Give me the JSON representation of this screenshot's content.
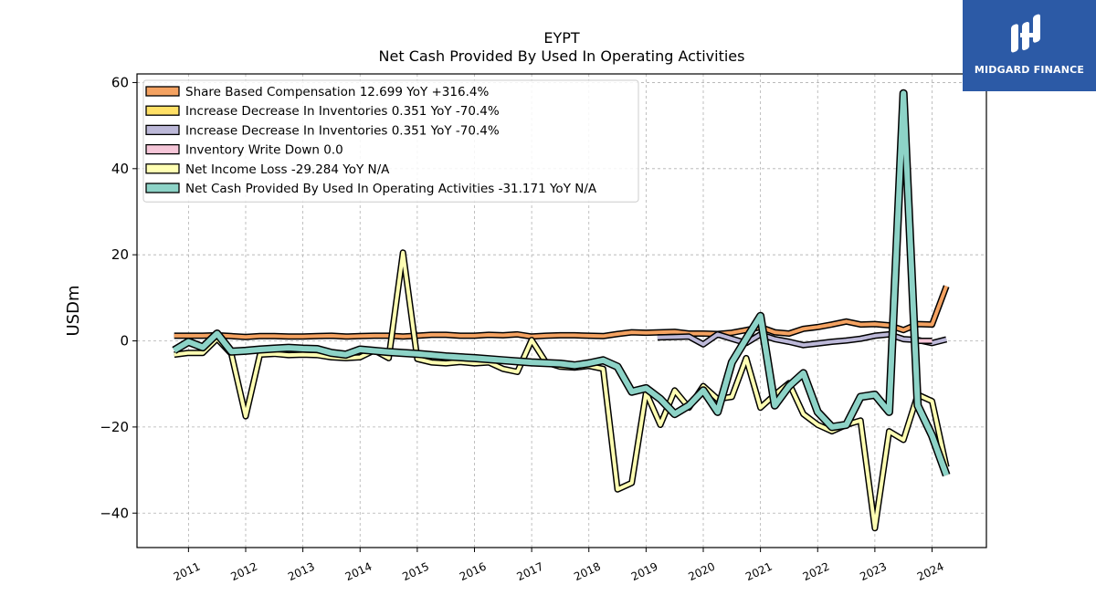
{
  "logo": {
    "text": "MIDGARD FINANCE",
    "icon": "midgard-logo-icon",
    "background": "#2c5aa6"
  },
  "chart_data": {
    "type": "line",
    "title": "EYPT",
    "subtitle": "Net Cash Provided By Used In Operating Activities",
    "ylabel": "USDm",
    "xlabel": "",
    "ylim": [
      -48,
      62
    ],
    "xlim": [
      2010.1,
      2024.95
    ],
    "yticks": [
      60,
      40,
      20,
      0,
      -20,
      -40
    ],
    "ytick_labels": [
      "60",
      "40",
      "20",
      "0",
      "−20",
      "−40"
    ],
    "xtick_labels": [
      "2011",
      "2012",
      "2013",
      "2014",
      "2015",
      "2016",
      "2017",
      "2018",
      "2019",
      "2020",
      "2021",
      "2022",
      "2023",
      "2024"
    ],
    "grid": true,
    "legend_position": "top-left",
    "series": [
      {
        "name": "Share Based Compensation  12.699 YoY +316.4%",
        "color": "#f4a261",
        "width": 4,
        "points": [
          [
            2010.75,
            1.2
          ],
          [
            2011.0,
            1.2
          ],
          [
            2011.25,
            1.2
          ],
          [
            2011.5,
            1.3
          ],
          [
            2011.75,
            1.1
          ],
          [
            2012.0,
            0.9
          ],
          [
            2012.25,
            1.1
          ],
          [
            2012.5,
            1.1
          ],
          [
            2012.75,
            1.0
          ],
          [
            2013.0,
            1.0
          ],
          [
            2013.25,
            1.1
          ],
          [
            2013.5,
            1.2
          ],
          [
            2013.75,
            1.0
          ],
          [
            2014.0,
            1.1
          ],
          [
            2014.25,
            1.2
          ],
          [
            2014.5,
            1.2
          ],
          [
            2014.75,
            1.0
          ],
          [
            2015.0,
            1.2
          ],
          [
            2015.25,
            1.4
          ],
          [
            2015.5,
            1.4
          ],
          [
            2015.75,
            1.2
          ],
          [
            2016.0,
            1.2
          ],
          [
            2016.25,
            1.4
          ],
          [
            2016.5,
            1.3
          ],
          [
            2016.75,
            1.5
          ],
          [
            2017.0,
            1.0
          ],
          [
            2017.25,
            1.2
          ],
          [
            2017.5,
            1.3
          ],
          [
            2017.75,
            1.3
          ],
          [
            2018.0,
            1.2
          ],
          [
            2018.25,
            1.1
          ],
          [
            2018.5,
            1.6
          ],
          [
            2018.75,
            2.0
          ],
          [
            2019.0,
            1.9
          ],
          [
            2019.25,
            2.0
          ],
          [
            2019.5,
            2.1
          ],
          [
            2019.75,
            1.7
          ],
          [
            2020.0,
            1.7
          ],
          [
            2020.25,
            1.6
          ],
          [
            2020.5,
            1.9
          ],
          [
            2020.75,
            2.5
          ],
          [
            2021.0,
            3.2
          ],
          [
            2021.25,
            2.0
          ],
          [
            2021.5,
            1.7
          ],
          [
            2021.75,
            2.8
          ],
          [
            2022.0,
            3.2
          ],
          [
            2022.25,
            3.8
          ],
          [
            2022.5,
            4.5
          ],
          [
            2022.75,
            3.8
          ],
          [
            2023.0,
            3.9
          ],
          [
            2023.25,
            3.6
          ],
          [
            2023.5,
            2.5
          ],
          [
            2023.75,
            3.9
          ],
          [
            2024.0,
            3.8
          ],
          [
            2024.25,
            12.7
          ]
        ]
      },
      {
        "name": "Increase Decrease In Inventories  0.351 YoY -70.4%",
        "color": "#ffe066",
        "width": 4,
        "points": []
      },
      {
        "name": "Increase Decrease In Inventories  0.351 YoY -70.4%",
        "color": "#bcb8d8",
        "width": 4,
        "points": [
          [
            2019.2,
            0.8
          ],
          [
            2019.5,
            0.9
          ],
          [
            2019.75,
            1.0
          ],
          [
            2020.0,
            -0.8
          ],
          [
            2020.25,
            1.5
          ],
          [
            2020.5,
            0.5
          ],
          [
            2020.75,
            -0.5
          ],
          [
            2021.0,
            1.5
          ],
          [
            2021.25,
            0.4
          ],
          [
            2021.5,
            -0.2
          ],
          [
            2021.75,
            -1.0
          ],
          [
            2022.0,
            -0.6
          ],
          [
            2022.25,
            -0.2
          ],
          [
            2022.5,
            0.1
          ],
          [
            2022.75,
            0.5
          ],
          [
            2023.0,
            1.2
          ],
          [
            2023.25,
            1.5
          ],
          [
            2023.5,
            0.4
          ],
          [
            2023.75,
            0.2
          ],
          [
            2024.0,
            -0.5
          ],
          [
            2024.25,
            0.35
          ]
        ]
      },
      {
        "name": "Inventory Write Down  0.0",
        "color": "#f5c6d8",
        "width": 4,
        "points": [
          [
            2023.75,
            0.0
          ],
          [
            2024.0,
            0.0
          ]
        ]
      },
      {
        "name": "Net Income Loss  -29.284 YoY N/A",
        "color": "#ffffb3",
        "width": 4,
        "points": [
          [
            2010.75,
            -3.2
          ],
          [
            2011.0,
            -2.8
          ],
          [
            2011.25,
            -2.8
          ],
          [
            2011.5,
            0.5
          ],
          [
            2011.75,
            -3.0
          ],
          [
            2012.0,
            -17.5
          ],
          [
            2012.25,
            -3.2
          ],
          [
            2012.5,
            -3.0
          ],
          [
            2012.75,
            -3.3
          ],
          [
            2013.0,
            -3.2
          ],
          [
            2013.25,
            -3.3
          ],
          [
            2013.5,
            -3.8
          ],
          [
            2013.75,
            -4.0
          ],
          [
            2014.0,
            -3.8
          ],
          [
            2014.25,
            -2.2
          ],
          [
            2014.5,
            -4.0
          ],
          [
            2014.75,
            20.5
          ],
          [
            2015.0,
            -4.2
          ],
          [
            2015.25,
            -5.0
          ],
          [
            2015.5,
            -5.2
          ],
          [
            2015.75,
            -4.9
          ],
          [
            2016.0,
            -5.2
          ],
          [
            2016.25,
            -5.0
          ],
          [
            2016.5,
            -6.5
          ],
          [
            2016.75,
            -7.2
          ],
          [
            2017.0,
            0.2
          ],
          [
            2017.25,
            -5.0
          ],
          [
            2017.5,
            -6.0
          ],
          [
            2017.75,
            -6.2
          ],
          [
            2018.0,
            -5.8
          ],
          [
            2018.25,
            -6.5
          ],
          [
            2018.5,
            -34.5
          ],
          [
            2018.75,
            -33.0
          ],
          [
            2019.0,
            -12.0
          ],
          [
            2019.25,
            -19.5
          ],
          [
            2019.5,
            -11.5
          ],
          [
            2019.75,
            -15.5
          ],
          [
            2020.0,
            -10.5
          ],
          [
            2020.25,
            -13.5
          ],
          [
            2020.5,
            -13.0
          ],
          [
            2020.75,
            -4.0
          ],
          [
            2021.0,
            -15.5
          ],
          [
            2021.25,
            -12.5
          ],
          [
            2021.5,
            -9.8
          ],
          [
            2021.75,
            -17.0
          ],
          [
            2022.0,
            -19.5
          ],
          [
            2022.25,
            -21.0
          ],
          [
            2022.5,
            -19.5
          ],
          [
            2022.75,
            -18.5
          ],
          [
            2023.0,
            -43.5
          ],
          [
            2023.25,
            -21.0
          ],
          [
            2023.5,
            -23.0
          ],
          [
            2023.75,
            -12.5
          ],
          [
            2024.0,
            -14.0
          ],
          [
            2024.25,
            -29.3
          ]
        ]
      },
      {
        "name": "Net Cash Provided By Used In Operating Activities  -31.171 YoY N/A",
        "color": "#8dd3c7",
        "width": 6,
        "points": [
          [
            2010.75,
            -2.2
          ],
          [
            2011.0,
            -0.2
          ],
          [
            2011.25,
            -1.5
          ],
          [
            2011.5,
            1.7
          ],
          [
            2011.75,
            -2.5
          ],
          [
            2012.0,
            -2.3
          ],
          [
            2012.25,
            -2.0
          ],
          [
            2012.5,
            -1.8
          ],
          [
            2012.75,
            -1.6
          ],
          [
            2013.0,
            -1.8
          ],
          [
            2013.25,
            -1.9
          ],
          [
            2013.5,
            -2.8
          ],
          [
            2013.75,
            -3.2
          ],
          [
            2014.0,
            -2.0
          ],
          [
            2014.5,
            -2.6
          ],
          [
            2015.0,
            -3.0
          ],
          [
            2015.5,
            -3.6
          ],
          [
            2016.0,
            -4.0
          ],
          [
            2016.5,
            -4.5
          ],
          [
            2017.0,
            -5.0
          ],
          [
            2017.5,
            -5.3
          ],
          [
            2017.75,
            -5.7
          ],
          [
            2018.0,
            -5.2
          ],
          [
            2018.25,
            -4.5
          ],
          [
            2018.5,
            -6.0
          ],
          [
            2018.75,
            -11.8
          ],
          [
            2019.0,
            -11.0
          ],
          [
            2019.25,
            -13.5
          ],
          [
            2019.5,
            -17.0
          ],
          [
            2019.75,
            -15.0
          ],
          [
            2020.0,
            -11.5
          ],
          [
            2020.25,
            -16.5
          ],
          [
            2020.5,
            -5.0
          ],
          [
            2020.75,
            0.5
          ],
          [
            2021.0,
            5.8
          ],
          [
            2021.25,
            -15.0
          ],
          [
            2021.5,
            -10.5
          ],
          [
            2021.75,
            -7.5
          ],
          [
            2022.0,
            -16.5
          ],
          [
            2022.25,
            -20.0
          ],
          [
            2022.5,
            -19.5
          ],
          [
            2022.75,
            -13.0
          ],
          [
            2023.0,
            -12.5
          ],
          [
            2023.25,
            -16.5
          ],
          [
            2023.5,
            57.5
          ],
          [
            2023.75,
            -15.0
          ],
          [
            2024.0,
            -22.0
          ],
          [
            2024.25,
            -31.2
          ]
        ]
      }
    ]
  }
}
